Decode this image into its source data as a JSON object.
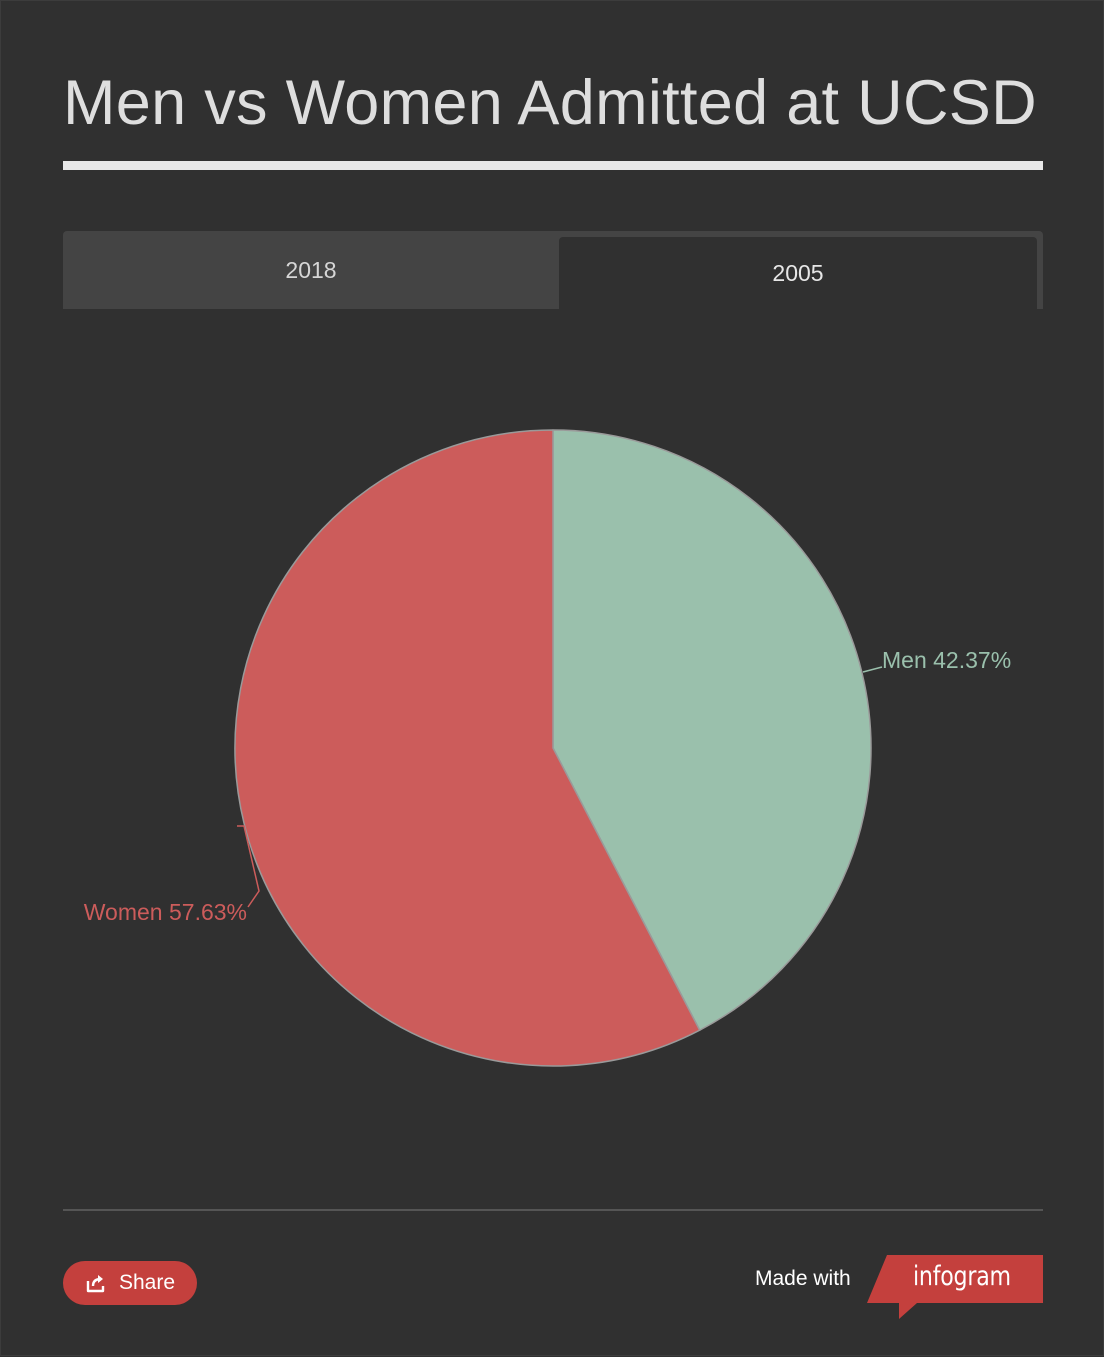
{
  "title": "Men vs Women Admitted at UCSD",
  "tabs": [
    {
      "label": "2018",
      "active": false
    },
    {
      "label": "2005",
      "active": true
    }
  ],
  "chart_data": {
    "type": "pie",
    "title": "Men vs Women Admitted at UCSD",
    "slices": [
      {
        "name": "Men",
        "value": 42.37,
        "label": "Men 42.37%",
        "color": "#9ac0ac"
      },
      {
        "name": "Women",
        "value": 57.63,
        "label": "Women 57.63%",
        "color": "#cc5c5b"
      }
    ],
    "start_angle_deg": 0,
    "direction": "clockwise"
  },
  "colors": {
    "background": "#303030",
    "men": "#9ac0ac",
    "women": "#cc5c5b",
    "accent": "#c4403d"
  },
  "footer": {
    "share_label": "Share",
    "share_icon": "share-icon",
    "made_with": "Made with",
    "brand": "infogram"
  }
}
